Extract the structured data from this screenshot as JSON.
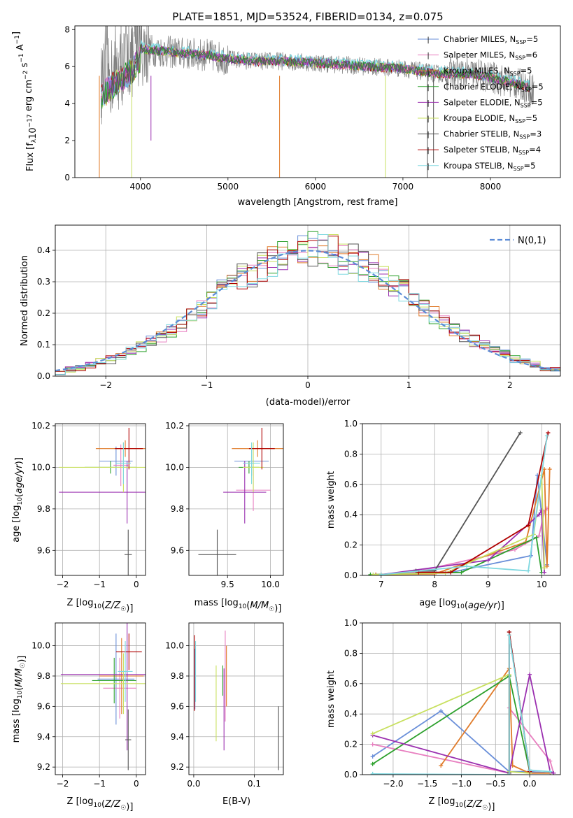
{
  "figure_title": "PLATE=1851, MJD=53524, FIBERID=0134, z=0.075",
  "series_names": [
    "Chabrier MILES, N_SSP=5",
    "Salpeter MILES, N_SSP=6",
    "Kroupa MILES, N_SSP=5",
    "Chabrier ELODIE, N_SSP=5",
    "Salpeter ELODIE, N_SSP=5",
    "Kroupa ELODIE, N_SSP=5",
    "Chabrier STELIB, N_SSP=3",
    "Salpeter STELIB, N_SSP=4",
    "Kroupa STELIB, N_SSP=5"
  ],
  "series_colors": [
    "#6a8fd9",
    "#e87fc0",
    "#e07b2a",
    "#2ca02c",
    "#9b30b0",
    "#c8e060",
    "#555555",
    "#b00000",
    "#7fd8e0"
  ],
  "chart_data": [
    {
      "type": "line",
      "title": "PLATE=1851, MJD=53524, FIBERID=0134, z=0.075",
      "xlabel": "wavelength [Angstrom, rest frame]",
      "ylabel": "Flux [f_λ 10^-17 erg cm^-2 s^-1 A^-1]",
      "xlim": [
        3250,
        8800
      ],
      "ylim": [
        0,
        8.2
      ],
      "xticks": [
        4000,
        5000,
        6000,
        7000,
        8000
      ],
      "yticks": [
        0,
        2,
        4,
        6,
        8
      ],
      "legend": "top-right",
      "legend_entries": [
        {
          "base": "Chabrier MILES, N",
          "sub": "SSP",
          "tail": "=5"
        },
        {
          "base": "Salpeter MILES, N",
          "sub": "SSP",
          "tail": "=6"
        },
        {
          "base": "Kroupa MILES, N",
          "sub": "SSP",
          "tail": "=5"
        },
        {
          "base": "Chabrier ELODIE, N",
          "sub": "SSP",
          "tail": "=5"
        },
        {
          "base": "Salpeter ELODIE, N",
          "sub": "SSP",
          "tail": "=5"
        },
        {
          "base": "Kroupa ELODIE, N",
          "sub": "SSP",
          "tail": "=5"
        },
        {
          "base": "Chabrier STELIB, N",
          "sub": "SSP",
          "tail": "=3"
        },
        {
          "base": "Salpeter STELIB, N",
          "sub": "SSP",
          "tail": "=4"
        },
        {
          "base": "Kroupa STELIB, N",
          "sub": "SSP",
          "tail": "=5"
        }
      ],
      "continuum_x": [
        3550,
        3700,
        3900,
        4000,
        4100,
        4300,
        4500,
        4800,
        5000,
        5300,
        5600,
        6000,
        6300,
        6600,
        7000,
        7400,
        7800,
        8200,
        8500
      ],
      "continuum_y": [
        5.0,
        5.6,
        6.4,
        7.0,
        6.9,
        6.8,
        6.7,
        6.6,
        6.4,
        6.3,
        6.3,
        6.2,
        6.1,
        6.0,
        5.9,
        5.6,
        5.6,
        5.2,
        4.8
      ]
    },
    {
      "type": "bar",
      "xlabel": "(data-model)/error",
      "ylabel": "Normed distribution",
      "xlim": [
        -2.5,
        2.5
      ],
      "ylim": [
        0,
        0.48
      ],
      "xticks": [
        -2,
        -1,
        0,
        1,
        2
      ],
      "yticks": [
        0.0,
        0.1,
        0.2,
        0.3,
        0.4
      ],
      "grid": true,
      "legend": "top-right",
      "reference_label": "N(0,1)",
      "bin_width": 0.1
    },
    {
      "type": "scatter",
      "xlabel": "Z [log10(Z/Z☉)]",
      "ylabel": "age [log10(age/yr)]",
      "xlim": [
        -2.2,
        0.25
      ],
      "ylim": [
        9.48,
        10.21
      ],
      "xticks": [
        -2,
        -1,
        0
      ],
      "yticks": [
        9.6,
        9.8,
        10.0,
        10.2
      ],
      "points": [
        {
          "x": -0.55,
          "y": 10.03,
          "xerr": 0.45,
          "yerr": 0.07
        },
        {
          "x": -0.42,
          "y": 10.01,
          "xerr": 0.2,
          "yerr": 0.1
        },
        {
          "x": -0.3,
          "y": 10.09,
          "xerr": 0.8,
          "yerr": 0.04
        },
        {
          "x": -0.7,
          "y": 10.0,
          "xerr": 0.7,
          "yerr": 0.03
        },
        {
          "x": -0.25,
          "y": 9.88,
          "xerr": 1.85,
          "yerr": 0.15
        },
        {
          "x": -0.35,
          "y": 10.0,
          "xerr": 1.75,
          "yerr": 0.12
        },
        {
          "x": -0.22,
          "y": 9.58,
          "xerr": 0.1,
          "yerr": 0.12
        },
        {
          "x": -0.2,
          "y": 10.09,
          "xerr": 0.38,
          "yerr": 0.1
        },
        {
          "x": -0.35,
          "y": 10.02,
          "xerr": 0.2,
          "yerr": 0.1
        }
      ]
    },
    {
      "type": "scatter",
      "xlabel": "mass [log10(M/M☉)]",
      "ylabel": "",
      "xlim": [
        9.05,
        10.15
      ],
      "ylim": [
        9.48,
        10.21
      ],
      "xticks": [
        9.5,
        10.0
      ],
      "yticks": [
        9.6,
        9.8,
        10.0,
        10.2
      ],
      "points": [
        {
          "x": 9.78,
          "y": 10.03,
          "xerr": 0.2,
          "yerr": 0.07
        },
        {
          "x": 9.8,
          "y": 9.89,
          "xerr": 0.2,
          "yerr": 0.1
        },
        {
          "x": 9.85,
          "y": 10.09,
          "xerr": 0.3,
          "yerr": 0.04
        },
        {
          "x": 9.75,
          "y": 10.0,
          "xerr": 0.12,
          "yerr": 0.03
        },
        {
          "x": 9.7,
          "y": 9.88,
          "xerr": 0.25,
          "yerr": 0.15
        },
        {
          "x": 9.8,
          "y": 10.0,
          "xerr": 0.12,
          "yerr": 0.12
        },
        {
          "x": 9.38,
          "y": 9.58,
          "xerr": 0.22,
          "yerr": 0.12
        },
        {
          "x": 9.9,
          "y": 10.09,
          "xerr": 0.15,
          "yerr": 0.1
        },
        {
          "x": 9.78,
          "y": 10.02,
          "xerr": 0.1,
          "yerr": 0.1
        }
      ]
    },
    {
      "type": "line",
      "xlabel": "age [log10(age/yr)]",
      "ylabel": "mass weight",
      "xlim": [
        6.65,
        10.35
      ],
      "ylim": [
        0,
        1
      ],
      "xticks": [
        7,
        8,
        9,
        10
      ],
      "yticks": [
        0.0,
        0.2,
        0.4,
        0.6,
        0.8,
        1.0
      ],
      "grid": true,
      "series": [
        {
          "x": [
            7.7,
            8.3,
            9.8,
            9.92,
            10.1
          ],
          "y": [
            0.02,
            0.02,
            0.13,
            0.66,
            0.07
          ]
        },
        {
          "x": [
            6.9,
            7.6,
            9.5,
            9.95,
            10.05,
            10.1
          ],
          "y": [
            0.005,
            0.02,
            0.17,
            0.26,
            0.42,
            0.44
          ]
        },
        {
          "x": [
            6.9,
            8.0,
            9.7,
            10.05,
            10.1,
            10.15
          ],
          "y": [
            0.005,
            0.01,
            0.22,
            0.7,
            0.06,
            0.7
          ]
        },
        {
          "x": [
            6.8,
            8.5,
            9.9,
            10.0
          ],
          "y": [
            0.005,
            0.02,
            0.25,
            0.02
          ]
        },
        {
          "x": [
            7.0,
            9.0,
            9.95,
            10.0,
            10.05
          ],
          "y": [
            0.005,
            0.1,
            0.4,
            0.43,
            0.02
          ]
        },
        {
          "x": [
            6.85,
            8.2,
            9.85,
            10.0,
            10.05
          ],
          "y": [
            0.005,
            0.015,
            0.27,
            0.66,
            0.05
          ]
        },
        {
          "x": [
            7.65,
            8.0,
            9.6
          ],
          "y": [
            0.03,
            0.03,
            0.94
          ]
        },
        {
          "x": [
            7.7,
            8.3,
            9.75,
            10.12
          ],
          "y": [
            0.02,
            0.02,
            0.33,
            0.94
          ]
        },
        {
          "x": [
            7.0,
            8.6,
            9.75,
            10.1
          ],
          "y": [
            0.005,
            0.06,
            0.03,
            0.92
          ]
        }
      ]
    },
    {
      "type": "scatter",
      "xlabel": "Z [log10(Z/Z☉)]",
      "ylabel": "mass [log10(M/M☉)]",
      "xlim": [
        -2.2,
        0.25
      ],
      "ylim": [
        9.15,
        10.15
      ],
      "xticks": [
        -2,
        -1,
        0
      ],
      "yticks": [
        9.2,
        9.4,
        9.6,
        9.8,
        10.0
      ],
      "points": [
        {
          "x": -0.55,
          "y": 9.78,
          "xerr": 0.5,
          "yerr": 0.3
        },
        {
          "x": -0.45,
          "y": 9.72,
          "xerr": 0.45,
          "yerr": 0.2
        },
        {
          "x": -0.4,
          "y": 9.8,
          "xerr": 0.6,
          "yerr": 0.25
        },
        {
          "x": -0.6,
          "y": 9.77,
          "xerr": 0.6,
          "yerr": 0.15
        },
        {
          "x": -0.25,
          "y": 9.81,
          "xerr": 1.8,
          "yerr": 0.5
        },
        {
          "x": -0.35,
          "y": 9.75,
          "xerr": 1.7,
          "yerr": 0.2
        },
        {
          "x": -0.22,
          "y": 9.38,
          "xerr": 0.08,
          "yerr": 0.2
        },
        {
          "x": -0.2,
          "y": 9.96,
          "xerr": 0.35,
          "yerr": 0.12
        },
        {
          "x": -0.3,
          "y": 9.83,
          "xerr": 0.2,
          "yerr": 0.2
        }
      ]
    },
    {
      "type": "scatter",
      "xlabel": "E(B-V)",
      "ylabel": "",
      "xlim": [
        -0.008,
        0.148
      ],
      "ylim": [
        9.15,
        10.15
      ],
      "xticks": [
        0.0,
        0.1
      ],
      "yticks": [
        9.2,
        9.4,
        9.6,
        9.8,
        10.0
      ],
      "points": [
        {
          "x": 0.002,
          "y": 9.78,
          "yerr": 0.2
        },
        {
          "x": 0.052,
          "y": 9.8,
          "yerr": 0.3
        },
        {
          "x": 0.054,
          "y": 9.8,
          "yerr": 0.2
        },
        {
          "x": 0.048,
          "y": 9.77,
          "yerr": 0.1
        },
        {
          "x": 0.05,
          "y": 9.58,
          "yerr": 0.27
        },
        {
          "x": 0.037,
          "y": 9.62,
          "yerr": 0.25
        },
        {
          "x": 0.14,
          "y": 9.39,
          "yerr": 0.21
        },
        {
          "x": 0.001,
          "y": 9.82,
          "yerr": 0.25
        },
        {
          "x": 0.003,
          "y": 9.83,
          "yerr": 0.2
        }
      ]
    },
    {
      "type": "line",
      "xlabel": "Z [log10(Z/Z☉)]",
      "ylabel": "mass weight",
      "xlim": [
        -2.45,
        0.45
      ],
      "ylim": [
        0,
        1
      ],
      "xticks": [
        -2.0,
        -1.5,
        -1.0,
        -0.5,
        0.0
      ],
      "yticks": [
        0.0,
        0.2,
        0.4,
        0.6,
        0.8,
        1.0
      ],
      "grid": true,
      "series": [
        {
          "x": [
            -2.3,
            -1.3,
            -0.3,
            0.0,
            0.35
          ],
          "y": [
            0.12,
            0.42,
            0.02,
            0.02,
            0.01
          ]
        },
        {
          "x": [
            -2.3,
            -0.3,
            -0.3,
            0.3,
            0.35
          ],
          "y": [
            0.2,
            0.01,
            0.44,
            0.09,
            0.01
          ]
        },
        {
          "x": [
            -1.3,
            -0.3,
            -0.25,
            0.0,
            0.3
          ],
          "y": [
            0.06,
            0.7,
            0.06,
            0.01,
            0.01
          ]
        },
        {
          "x": [
            -2.3,
            -0.3,
            0.0
          ],
          "y": [
            0.07,
            0.65,
            0.02
          ]
        },
        {
          "x": [
            -2.3,
            -0.3,
            0.0,
            0.3,
            0.35
          ],
          "y": [
            0.26,
            0.01,
            0.66,
            0.02,
            0.01
          ]
        },
        {
          "x": [
            -2.3,
            -0.3,
            -0.3,
            0.0
          ],
          "y": [
            0.27,
            0.66,
            0.02,
            0.01
          ]
        },
        {
          "x": [
            -0.3,
            -0.3,
            0.0
          ],
          "y": [
            0.01,
            0.94,
            0.03
          ]
        },
        {
          "x": [
            -0.3,
            -0.3,
            0.0
          ],
          "y": [
            0.0,
            0.94,
            0.02
          ]
        },
        {
          "x": [
            -2.3,
            -0.3,
            -0.3,
            0.0,
            0.3
          ],
          "y": [
            0.005,
            0.0,
            0.92,
            0.03,
            0.02
          ]
        }
      ]
    }
  ]
}
